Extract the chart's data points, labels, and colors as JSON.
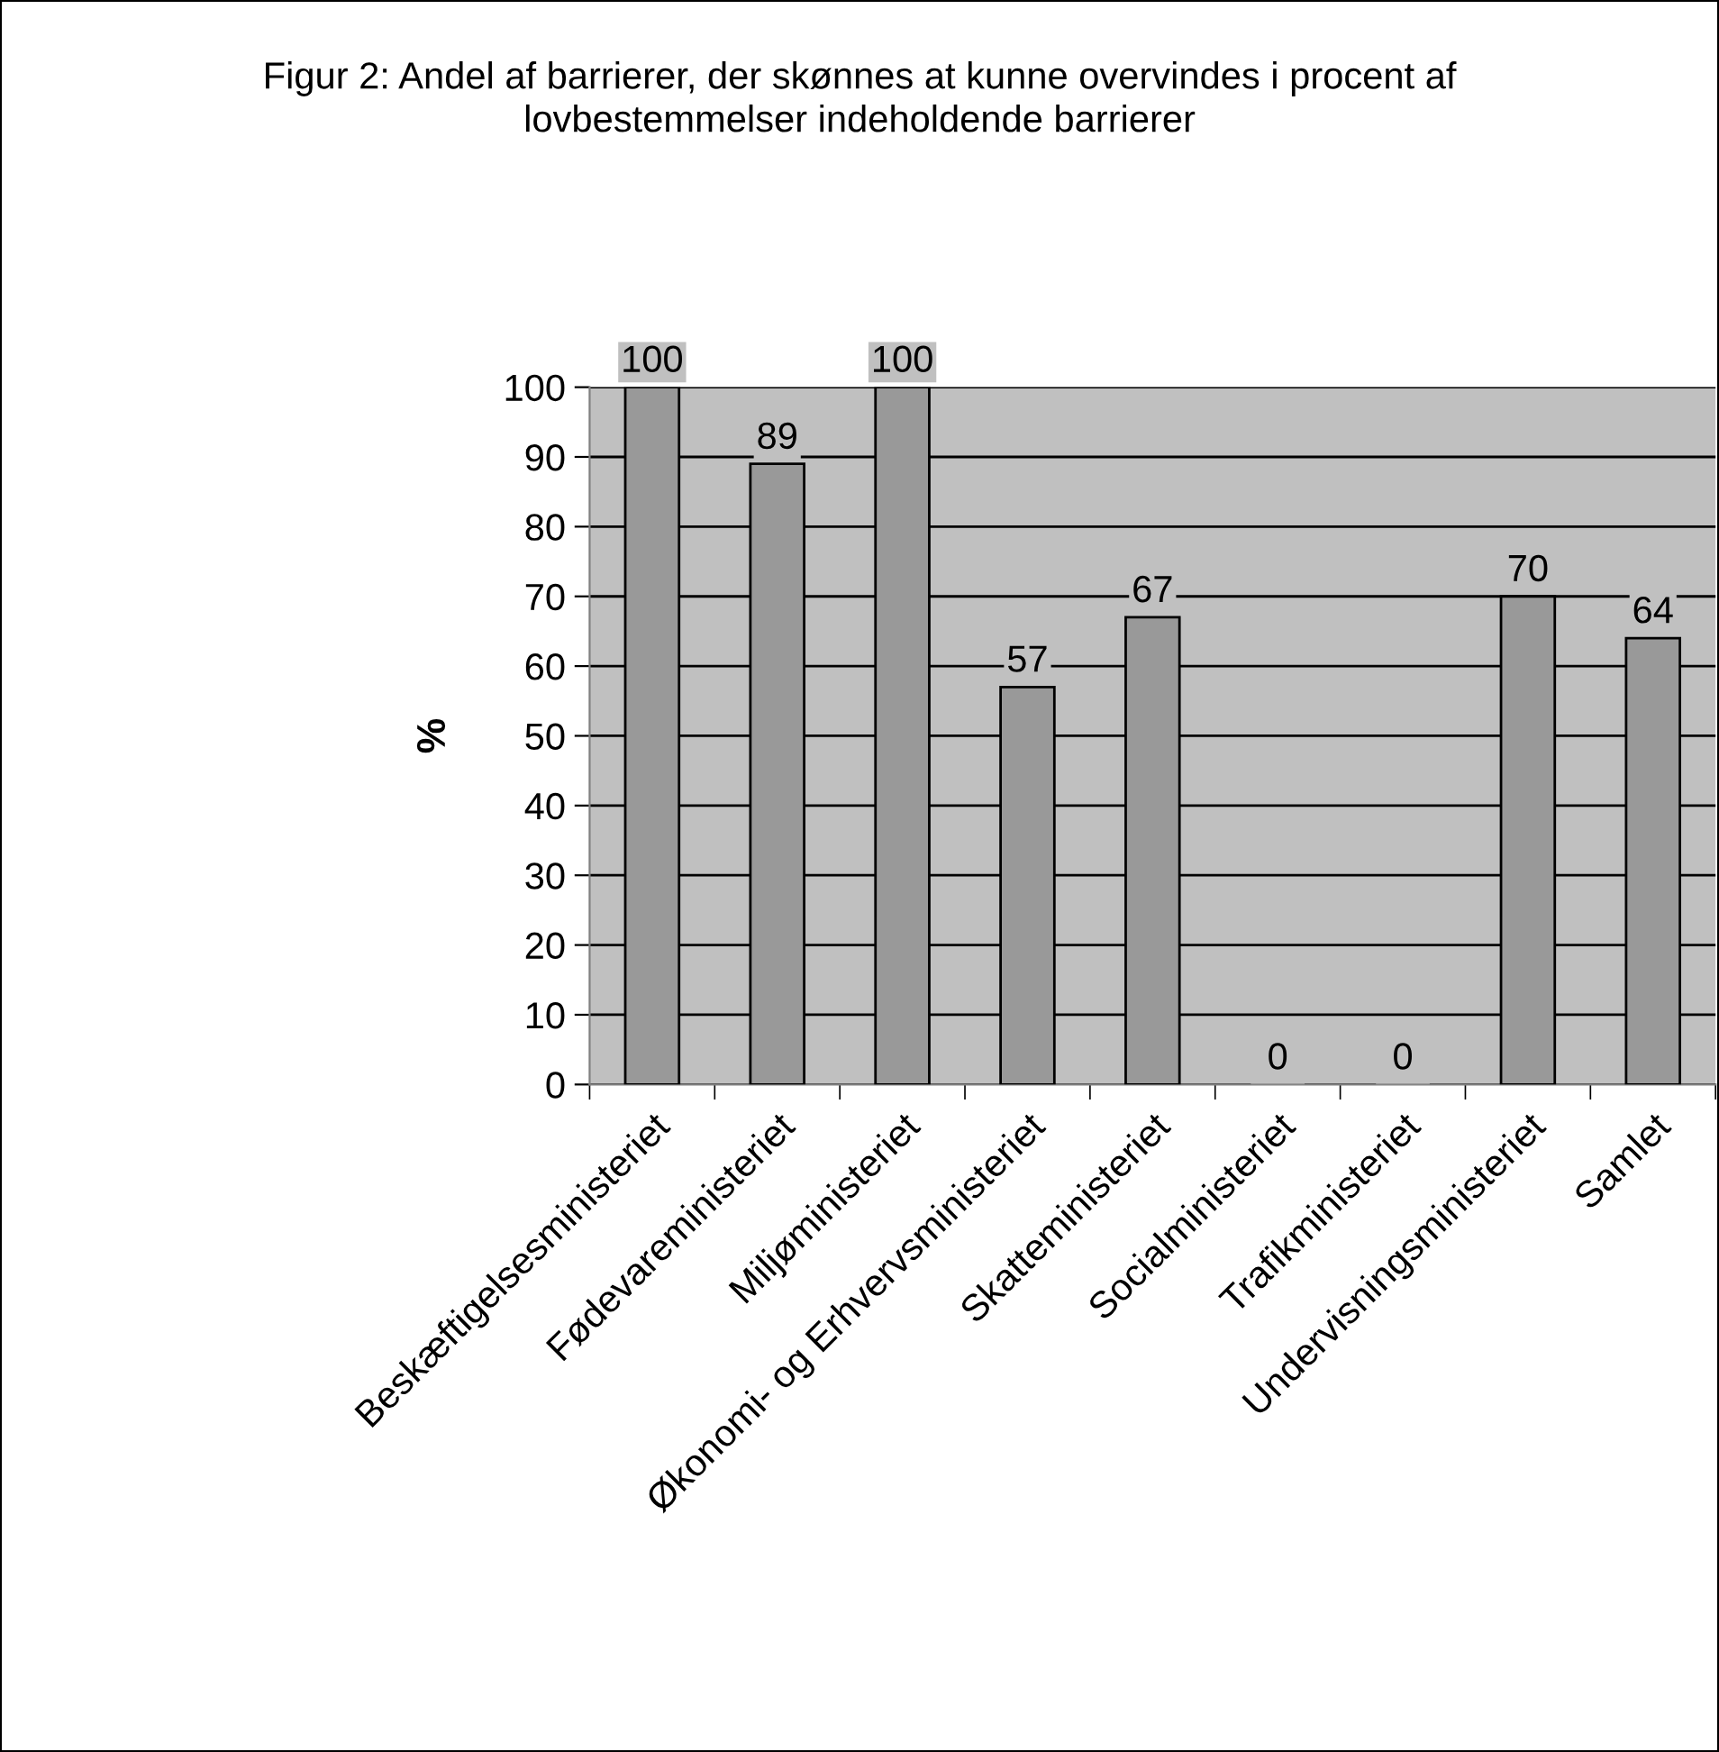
{
  "chart_data": {
    "type": "bar",
    "title": "Figur 2: Andel af barrierer, der skønnes at kunne overvindes i procent af lovbestemmelser indeholdende barrierer",
    "ylabel": "%",
    "categories": [
      "Beskæftigelsesministeriet",
      "Fødevareministeriet",
      "Miljøministeriet",
      "Økonomi- og Erhvervsministeriet",
      "Skatteministeriet",
      "Socialministeriet",
      "Trafikministeriet",
      "Undervisningsministeriet",
      "Samlet"
    ],
    "values": [
      100,
      89,
      100,
      57,
      67,
      0,
      0,
      70,
      64
    ],
    "color": "#999999",
    "ylim": [
      0,
      100
    ],
    "yticks": [
      0,
      10,
      20,
      30,
      40,
      50,
      60,
      70,
      80,
      90,
      100
    ],
    "grid": "y",
    "data_labels": true,
    "legend": false
  }
}
